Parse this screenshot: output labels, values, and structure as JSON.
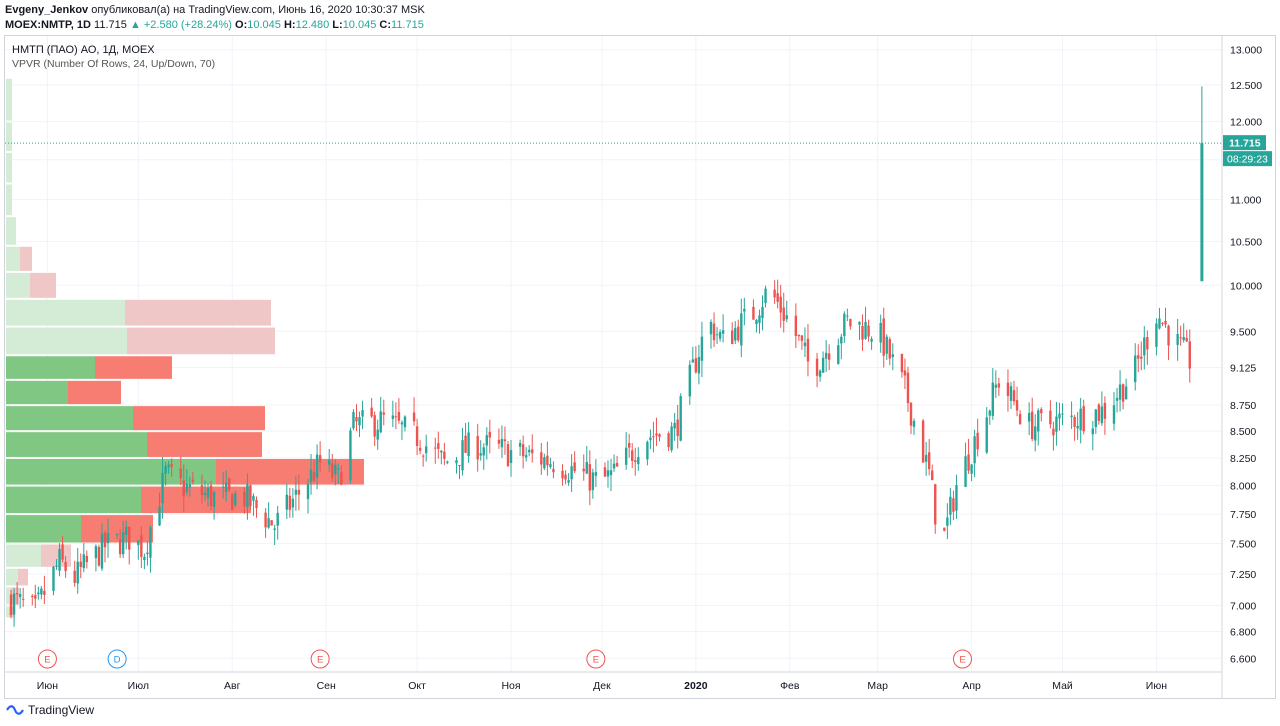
{
  "header": {
    "author": "Evgeny_Jenkov",
    "published_text": " опубликовал(а) на TradingView.com, Июнь 16, 2020 10:30:37 MSK",
    "symbol_line": "MOEX:NMTP, 1D",
    "last": "11.715",
    "change": "▲ +2.580 (+28.24%)",
    "o_label": "O:",
    "o_value": "10.045",
    "h_label": "H:",
    "h_value": "12.480",
    "l_label": "L:",
    "l_value": "10.045",
    "c_label": "C:",
    "c_value": "11.715"
  },
  "legend": {
    "title": "НМТП (ПАО) АО, 1Д, MOEX",
    "indicator": "VPVR (Number Of Rows, 24, Up/Down, 70)"
  },
  "footer": {
    "brand": "TradingView"
  },
  "colors": {
    "up": "#26a69a",
    "down": "#ef5350",
    "vp_up": "#81c784",
    "vp_down": "#f77c72",
    "vp_up_light": "#d4ecd6",
    "vp_down_light": "#f0c7c7",
    "price_line": "#26a69a",
    "grid": "#f0f3fa",
    "axis_text": "#131722"
  },
  "chart_data": {
    "type": "candlestick",
    "y_axis": {
      "ticks": [
        6.6,
        6.8,
        7.0,
        7.25,
        7.5,
        7.75,
        8.0,
        8.25,
        8.5,
        8.75,
        9.125,
        9.5,
        10.0,
        10.5,
        11.0,
        11.5,
        12.0,
        12.5,
        13.0
      ],
      "tick_labels": [
        "6.600",
        "6.800",
        "7.000",
        "7.250",
        "7.500",
        "7.750",
        "8.000",
        "8.250",
        "8.500",
        "8.750",
        "9.125",
        "9.500",
        "10.000",
        "10.500",
        "11.000",
        "11.500",
        "12.000",
        "12.500",
        "13.000"
      ],
      "scale": "log"
    },
    "x_axis": {
      "labels": [
        "Июн",
        "Июл",
        "Авг",
        "Сен",
        "Окт",
        "Ноя",
        "Дек",
        "2020",
        "Фев",
        "Мар",
        "Апр",
        "Май",
        "Июн"
      ],
      "label_dates": [
        "2019-06-01",
        "2019-07-01",
        "2019-08-01",
        "2019-09-01",
        "2019-10-01",
        "2019-11-01",
        "2019-12-01",
        "2020-01-01",
        "2020-02-01",
        "2020-03-01",
        "2020-04-01",
        "2020-05-01",
        "2020-06-01"
      ]
    },
    "price_label": "11.715",
    "countdown_label": "08:29:23",
    "events": [
      {
        "date": "2019-06-01",
        "label": "E",
        "kind": "earnings"
      },
      {
        "date": "2019-06-24",
        "label": "D",
        "kind": "dividend"
      },
      {
        "date": "2019-08-30",
        "label": "E",
        "kind": "earnings"
      },
      {
        "date": "2019-11-29",
        "label": "E",
        "kind": "earnings"
      },
      {
        "date": "2020-03-29",
        "label": "E",
        "kind": "earnings"
      }
    ],
    "volume_profile": [
      {
        "from": 6.9,
        "to": 7.0,
        "up": 3,
        "down": 6,
        "in_range": false
      },
      {
        "from": 7.0,
        "to": 7.15,
        "up": 5,
        "down": 8,
        "in_range": false
      },
      {
        "from": 7.15,
        "to": 7.3,
        "up": 12,
        "down": 10,
        "in_range": false
      },
      {
        "from": 7.3,
        "to": 7.5,
        "up": 35,
        "down": 30,
        "in_range": false
      },
      {
        "from": 7.5,
        "to": 7.75,
        "up": 75,
        "down": 72,
        "in_range": true
      },
      {
        "from": 7.75,
        "to": 8.0,
        "up": 135,
        "down": 110,
        "in_range": true
      },
      {
        "from": 8.0,
        "to": 8.25,
        "up": 210,
        "down": 148,
        "in_range": true
      },
      {
        "from": 8.25,
        "to": 8.5,
        "up": 141,
        "down": 115,
        "in_range": true
      },
      {
        "from": 8.5,
        "to": 8.75,
        "up": 127,
        "down": 132,
        "in_range": true
      },
      {
        "from": 8.75,
        "to": 9.0,
        "up": 62,
        "down": 53,
        "in_range": true
      },
      {
        "from": 9.0,
        "to": 9.25,
        "up": 89,
        "down": 77,
        "in_range": true
      },
      {
        "from": 9.25,
        "to": 9.55,
        "up": 121,
        "down": 148,
        "in_range": false
      },
      {
        "from": 9.55,
        "to": 9.85,
        "up": 119,
        "down": 146,
        "in_range": false
      },
      {
        "from": 9.85,
        "to": 10.15,
        "up": 24,
        "down": 26,
        "in_range": false
      },
      {
        "from": 10.15,
        "to": 10.45,
        "up": 14,
        "down": 12,
        "in_range": false
      },
      {
        "from": 10.45,
        "to": 10.8,
        "up": 10,
        "down": 0,
        "in_range": false
      },
      {
        "from": 10.8,
        "to": 11.2,
        "up": 6,
        "down": 0,
        "in_range": false
      },
      {
        "from": 11.2,
        "to": 11.6,
        "up": 6,
        "down": 0,
        "in_range": false
      },
      {
        "from": 11.6,
        "to": 12.0,
        "up": 6,
        "down": 0,
        "in_range": false
      },
      {
        "from": 12.0,
        "to": 12.6,
        "up": 6,
        "down": 0,
        "in_range": false
      }
    ],
    "anchors": [
      [
        "2019-05-20",
        7.05
      ],
      [
        "2019-05-28",
        6.95
      ],
      [
        "2019-06-05",
        7.35
      ],
      [
        "2019-06-10",
        7.22
      ],
      [
        "2019-06-20",
        7.48
      ],
      [
        "2019-06-28",
        7.55
      ],
      [
        "2019-07-03",
        7.45
      ],
      [
        "2019-07-10",
        8.1
      ],
      [
        "2019-07-15",
        8.0
      ],
      [
        "2019-07-25",
        7.9
      ],
      [
        "2019-08-05",
        7.9
      ],
      [
        "2019-08-15",
        7.65
      ],
      [
        "2019-08-22",
        7.9
      ],
      [
        "2019-08-30",
        8.2
      ],
      [
        "2019-09-05",
        8.05
      ],
      [
        "2019-09-10",
        8.55
      ],
      [
        "2019-09-20",
        8.6
      ],
      [
        "2019-10-01",
        8.45
      ],
      [
        "2019-10-10",
        8.2
      ],
      [
        "2019-10-20",
        8.38
      ],
      [
        "2019-11-01",
        8.3
      ],
      [
        "2019-11-15",
        8.22
      ],
      [
        "2019-11-30",
        8.03
      ],
      [
        "2019-12-05",
        8.1
      ],
      [
        "2019-12-15",
        8.45
      ],
      [
        "2019-12-25",
        8.5
      ],
      [
        "2020-01-05",
        9.6
      ],
      [
        "2020-01-10",
        9.4
      ],
      [
        "2020-01-20",
        9.7
      ],
      [
        "2020-01-25",
        9.95
      ],
      [
        "2020-02-01",
        9.6
      ],
      [
        "2020-02-08",
        9.1
      ],
      [
        "2020-02-20",
        9.6
      ],
      [
        "2020-03-01",
        9.5
      ],
      [
        "2020-03-10",
        8.9
      ],
      [
        "2020-03-18",
        8.1
      ],
      [
        "2020-03-22",
        7.45
      ],
      [
        "2020-03-27",
        8.0
      ],
      [
        "2020-04-05",
        8.6
      ],
      [
        "2020-04-10",
        9.0
      ],
      [
        "2020-04-20",
        8.55
      ],
      [
        "2020-05-01",
        8.6
      ],
      [
        "2020-05-15",
        8.7
      ],
      [
        "2020-05-25",
        9.1
      ],
      [
        "2020-06-01",
        9.7
      ],
      [
        "2020-06-07",
        9.4
      ],
      [
        "2020-06-12",
        9.2
      ]
    ],
    "last_candle": {
      "date": "2020-06-16",
      "open": 10.045,
      "high": 12.48,
      "low": 10.045,
      "close": 11.715
    },
    "ylim": [
      6.5,
      13.2
    ],
    "xlim": [
      "2019-05-18",
      "2020-06-20"
    ]
  }
}
